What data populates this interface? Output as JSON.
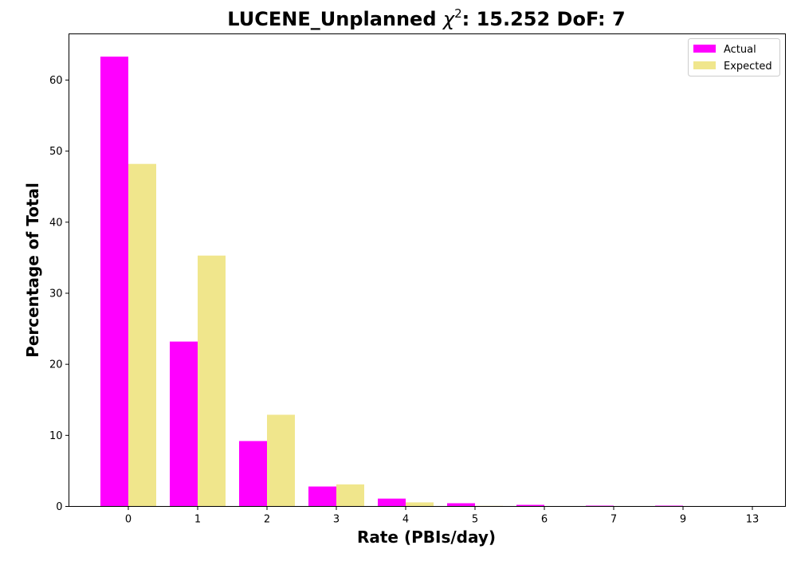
{
  "chart_data": {
    "type": "bar",
    "title_prefix": "LUCENE_Unplanned ",
    "title_symbol": "χ",
    "title_superscript": "2",
    "title_suffix": ": 15.252 DoF: 7",
    "xlabel": "Rate (PBIs/day)",
    "ylabel": "Percentage of Total",
    "categories": [
      "0",
      "1",
      "2",
      "3",
      "4",
      "5",
      "6",
      "7",
      "9",
      "13"
    ],
    "ylim": [
      0,
      66.5
    ],
    "yticks": [
      0,
      10,
      20,
      30,
      40,
      50,
      60
    ],
    "grid": false,
    "legend_position": "top-right",
    "series": [
      {
        "name": "Actual",
        "color": "#ff00ff",
        "values": [
          63.3,
          23.2,
          9.2,
          2.8,
          1.1,
          0.45,
          0.22,
          0.11,
          0.11,
          0.0
        ]
      },
      {
        "name": "Expected",
        "color": "#f0e68c",
        "values": [
          48.2,
          35.3,
          12.9,
          3.1,
          0.57,
          0.08,
          0.01,
          0.0,
          0.0,
          0.0
        ]
      }
    ]
  }
}
